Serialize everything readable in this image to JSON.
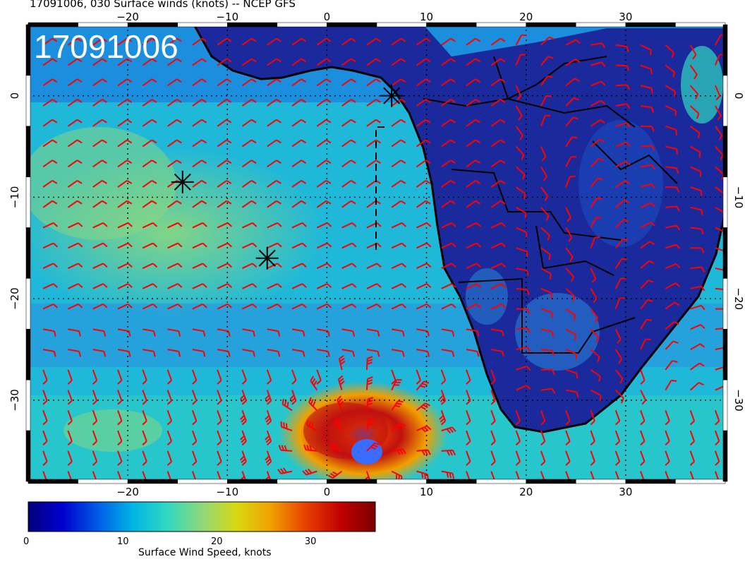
{
  "title": "17091006, 030 Surface winds (knots) -- NCEP GFS",
  "date_stamp": "17091006",
  "x_ticks": [
    "−20",
    "−10",
    "0",
    "10",
    "20",
    "30"
  ],
  "y_ticks": [
    "0",
    "−10",
    "−20",
    "−30"
  ],
  "colorbar": {
    "title": "Surface Wind Speed, knots",
    "ticks": [
      "0",
      "10",
      "20",
      "30"
    ],
    "min": 0,
    "max": 37,
    "colors": [
      "#00007a",
      "#0000d0",
      "#005ce6",
      "#00b4e6",
      "#30d8c0",
      "#8ed87c",
      "#d8d810",
      "#f0a000",
      "#e84000",
      "#c00000",
      "#7a0000"
    ]
  },
  "map": {
    "lon_range": [
      -30,
      40
    ],
    "lat_range": [
      -38,
      7
    ],
    "markers": [
      {
        "lon": 6.5,
        "lat": 0
      },
      {
        "lon": -14.5,
        "lat": -8.5
      },
      {
        "lon": -6,
        "lat": -16
      }
    ],
    "cyclone_center": {
      "lon": 3.5,
      "lat": -35.5
    },
    "barb_color": "#ff0000",
    "land_color": "#1a2a9c",
    "border_color": "#000000"
  }
}
